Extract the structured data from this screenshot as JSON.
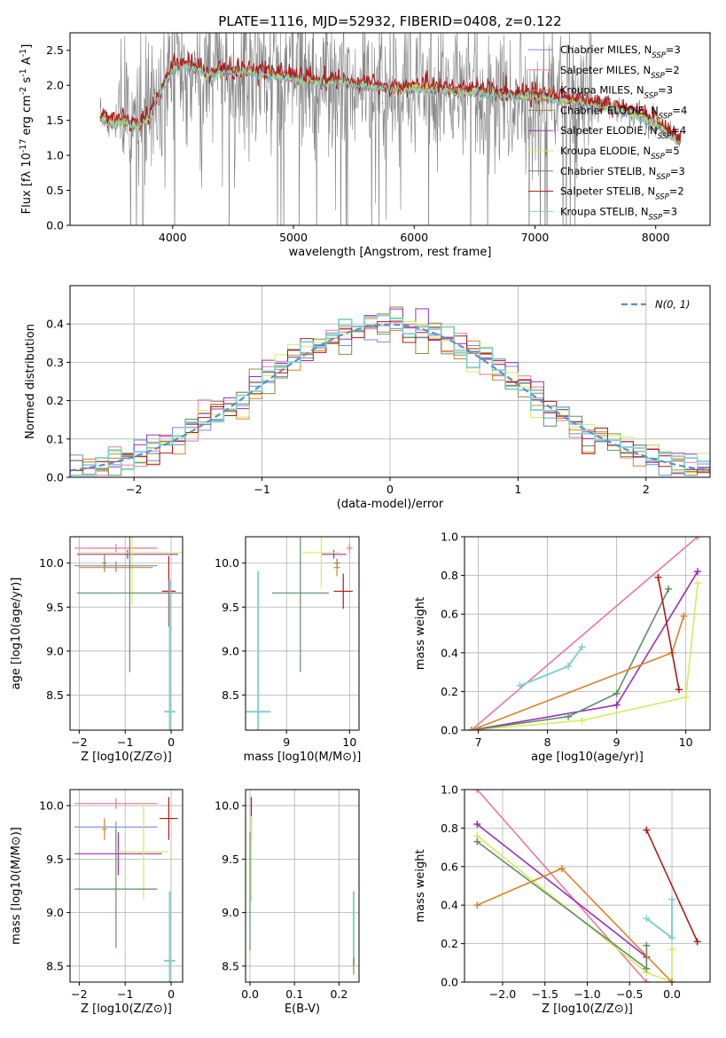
{
  "figure_title": "PLATE=1116, MJD=52932, FIBERID=0408, z=0.122",
  "colors": {
    "cm": "#6f8fd6",
    "sm": "#e9799a",
    "km": "#d9822b",
    "ce": "#8c8c3c",
    "se": "#9a2fb8",
    "ke": "#d9ea5c",
    "cs": "#5f8f66",
    "ss": "#aa1c1c",
    "ks": "#82cfcf",
    "raw": "#7f7f7f",
    "normal": "#5b8fd0"
  },
  "chart_data": [
    {
      "id": "spectrum",
      "type": "line",
      "xlabel": "wavelength [Angstrom, rest frame]",
      "ylabel": "Flux [f_λ 10^-17 erg cm^-2 s^-1 A^-1]",
      "xlim": [
        3150,
        8450
      ],
      "ylim": [
        0,
        2.75
      ],
      "xticks": [
        4000,
        5000,
        6000,
        7000,
        8000
      ],
      "yticks": [
        0.0,
        0.5,
        1.0,
        1.5,
        2.0,
        2.5
      ],
      "grid": false,
      "legend_position": "right",
      "legend": [
        {
          "key": "cm",
          "label": "Chabrier MILES, N_SSP=3"
        },
        {
          "key": "sm",
          "label": "Salpeter MILES, N_SSP=2"
        },
        {
          "key": "km",
          "label": "Kroupa MILES, N_SSP=3"
        },
        {
          "key": "ce",
          "label": "Chabrier ELODIE, N_SSP=4"
        },
        {
          "key": "se",
          "label": "Salpeter ELODIE, N_SSP=4"
        },
        {
          "key": "ke",
          "label": "Kroupa ELODIE, N_SSP=5"
        },
        {
          "key": "cs",
          "label": "Chabrier STELIB, N_SSP=3"
        },
        {
          "key": "ss",
          "label": "Salpeter STELIB, N_SSP=2"
        },
        {
          "key": "ks",
          "label": "Kroupa STELIB, N_SSP=3"
        }
      ],
      "continuum": {
        "x": [
          3400,
          3500,
          3600,
          3700,
          3800,
          3900,
          4000,
          4100,
          4200,
          4300,
          4400,
          4600,
          4800,
          5000,
          5200,
          5400,
          5600,
          5800,
          6000,
          6200,
          6400,
          6600,
          6800,
          7000,
          7200,
          7400,
          7600,
          7800,
          8000,
          8200
        ],
        "y": [
          1.55,
          1.45,
          1.5,
          1.4,
          1.55,
          1.9,
          2.25,
          2.3,
          2.25,
          2.15,
          2.2,
          2.2,
          2.15,
          2.1,
          2.05,
          2.05,
          2.0,
          1.95,
          1.95,
          1.95,
          1.9,
          1.9,
          1.85,
          1.85,
          1.8,
          1.75,
          1.7,
          1.6,
          1.45,
          1.2
        ]
      }
    },
    {
      "id": "residuals",
      "type": "histogram",
      "xlabel": "(data-model)/error",
      "ylabel": "Normed distribution",
      "xlim": [
        -2.5,
        2.5
      ],
      "ylim": [
        0,
        0.5
      ],
      "xticks": [
        -2,
        -1,
        0,
        1,
        2
      ],
      "yticks": [
        0.0,
        0.1,
        0.2,
        0.3,
        0.4
      ],
      "grid": true,
      "legend_position": "top-right",
      "legend": [
        {
          "key": "normal",
          "label": "N(0, 1)"
        }
      ],
      "bin_width": 0.1
    },
    {
      "id": "age_vs_Z",
      "type": "scatter",
      "xlabel": "Z [log10(Z/Z⊙)]",
      "ylabel": "age  [log10(age/yr)]",
      "xlim": [
        -2.2,
        0.25
      ],
      "ylim": [
        8.1,
        10.3
      ],
      "xticks": [
        -2,
        -1,
        0
      ],
      "yticks": [
        8.5,
        9.0,
        9.5,
        10.0
      ],
      "grid": true,
      "points": [
        {
          "key": "sm",
          "x": -1.2,
          "xerr": 0.9,
          "y": 10.17,
          "yerr": 0.05
        },
        {
          "key": "se",
          "x": -0.95,
          "xerr": 1.1,
          "y": 10.1,
          "yerr": 0.05
        },
        {
          "key": "ke",
          "x": -0.85,
          "xerr": 1.2,
          "y": 10.12,
          "yerr": 0.6
        },
        {
          "key": "cm",
          "x": -1.2,
          "xerr": 0.9,
          "y": 9.97,
          "yerr": 0.05
        },
        {
          "key": "km",
          "x": -1.2,
          "xerr": 0.8,
          "y": 9.95,
          "yerr": 0.05
        },
        {
          "key": "ce",
          "x": -1.45,
          "xerr": 0.05,
          "y": 10.0,
          "yerr": 0.1
        },
        {
          "key": "cs",
          "x": -0.9,
          "xerr": 1.15,
          "y": 9.66,
          "yerr": 0.9
        },
        {
          "key": "ss",
          "x": -0.05,
          "xerr": 0.15,
          "y": 9.68,
          "yerr": 0.4
        },
        {
          "key": "ks",
          "x": -0.03,
          "xerr": 0.12,
          "y": 8.31,
          "yerr": 1.5
        }
      ]
    },
    {
      "id": "age_vs_mass",
      "type": "scatter",
      "xlabel": "mass [log10(M/M⊙)]",
      "ylabel": "",
      "xlim": [
        8.35,
        10.15
      ],
      "ylim": [
        8.1,
        10.3
      ],
      "xticks": [
        9,
        10
      ],
      "yticks": [
        8.5,
        9.0,
        9.5,
        10.0
      ],
      "grid": true,
      "points": [
        {
          "key": "sm",
          "x": 10.0,
          "xerr": 0.05,
          "y": 10.17,
          "yerr": 0.05
        },
        {
          "key": "se",
          "x": 9.75,
          "xerr": 0.2,
          "y": 10.1,
          "yerr": 0.05
        },
        {
          "key": "ke",
          "x": 9.55,
          "xerr": 0.3,
          "y": 10.12,
          "yerr": 0.4
        },
        {
          "key": "km",
          "x": 9.8,
          "xerr": 0.05,
          "y": 9.95,
          "yerr": 0.1
        },
        {
          "key": "ce",
          "x": 9.8,
          "xerr": 0.05,
          "y": 10.0,
          "yerr": 0.05
        },
        {
          "key": "cs",
          "x": 9.22,
          "xerr": 0.45,
          "y": 9.66,
          "yerr": 0.9
        },
        {
          "key": "ss",
          "x": 9.9,
          "xerr": 0.15,
          "y": 9.68,
          "yerr": 0.2
        },
        {
          "key": "ks",
          "x": 8.55,
          "xerr": 0.2,
          "y": 8.31,
          "yerr": 1.6
        }
      ]
    },
    {
      "id": "weight_vs_age",
      "type": "line",
      "xlabel": "age  [log10(age/yr)]",
      "ylabel": "mass weight",
      "xlim": [
        6.8,
        10.35
      ],
      "ylim": [
        0,
        1
      ],
      "xticks": [
        7,
        8,
        9,
        10
      ],
      "yticks": [
        0.0,
        0.2,
        0.4,
        0.6,
        0.8,
        1.0
      ],
      "grid": true,
      "series": [
        {
          "key": "sm",
          "x": [
            6.9,
            10.17
          ],
          "y": [
            0.0,
            1.0
          ]
        },
        {
          "key": "se",
          "x": [
            6.9,
            9.0,
            10.17
          ],
          "y": [
            0.0,
            0.13,
            0.82
          ]
        },
        {
          "key": "ke",
          "x": [
            6.9,
            8.5,
            10.0,
            10.17
          ],
          "y": [
            0.0,
            0.05,
            0.17,
            0.76
          ]
        },
        {
          "key": "cs",
          "x": [
            6.9,
            8.3,
            9.0,
            9.75
          ],
          "y": [
            0.0,
            0.07,
            0.19,
            0.73
          ]
        },
        {
          "key": "km",
          "x": [
            6.9,
            9.8,
            9.97
          ],
          "y": [
            0.0,
            0.4,
            0.59
          ]
        },
        {
          "key": "ss",
          "x": [
            9.6,
            9.9
          ],
          "y": [
            0.79,
            0.21
          ]
        },
        {
          "key": "ks",
          "x": [
            7.6,
            8.3,
            8.5
          ],
          "y": [
            0.23,
            0.33,
            0.43
          ]
        }
      ]
    },
    {
      "id": "mass_vs_Z",
      "type": "scatter",
      "xlabel": "Z [log10(Z/Z⊙)]",
      "ylabel": "mass [log10(M/M⊙)]",
      "xlim": [
        -2.2,
        0.25
      ],
      "ylim": [
        8.35,
        10.15
      ],
      "xticks": [
        -2,
        -1,
        0
      ],
      "yticks": [
        8.5,
        9.0,
        9.5,
        10.0
      ],
      "grid": true,
      "points": [
        {
          "key": "sm",
          "x": -1.2,
          "xerr": 0.9,
          "y": 10.02,
          "yerr": 0.05
        },
        {
          "key": "cm",
          "x": -1.2,
          "xerr": 0.9,
          "y": 9.8,
          "yerr": 0.05
        },
        {
          "key": "km",
          "x": -1.45,
          "xerr": 0.05,
          "y": 9.78,
          "yerr": 0.1
        },
        {
          "key": "se",
          "x": -1.15,
          "xerr": 0.95,
          "y": 9.55,
          "yerr": 0.2
        },
        {
          "key": "ke",
          "x": -0.6,
          "xerr": 0.55,
          "y": 9.57,
          "yerr": 0.45
        },
        {
          "key": "cs",
          "x": -1.2,
          "xerr": 0.9,
          "y": 9.22,
          "yerr": 0.55
        },
        {
          "key": "ss",
          "x": -0.05,
          "xerr": 0.2,
          "y": 9.88,
          "yerr": 0.2
        },
        {
          "key": "ks",
          "x": -0.03,
          "xerr": 0.12,
          "y": 8.55,
          "yerr": 0.65
        }
      ]
    },
    {
      "id": "mass_vs_ebv",
      "type": "scatter",
      "xlabel": "E(B-V)",
      "ylabel": "",
      "xlim": [
        -0.01,
        0.245
      ],
      "ylim": [
        8.35,
        10.15
      ],
      "xticks": [
        0.0,
        0.1,
        0.2
      ],
      "yticks": [
        8.5,
        9.0,
        9.5,
        10.0
      ],
      "grid": true,
      "points": [
        {
          "key": "ss",
          "x": 0.003,
          "xerr": 0.0,
          "y": 9.88,
          "yerr": 0.2
        },
        {
          "key": "ke",
          "x": 0.003,
          "xerr": 0.0,
          "y": 9.5,
          "yerr": 0.4
        },
        {
          "key": "cs",
          "x": 0.0,
          "xerr": 0.0,
          "y": 9.2,
          "yerr": 0.55
        },
        {
          "key": "ks",
          "x": 0.233,
          "xerr": 0.0,
          "y": 8.85,
          "yerr": 0.35
        },
        {
          "key": "ce",
          "x": 0.233,
          "xerr": 0.0,
          "y": 8.5,
          "yerr": 0.08
        }
      ]
    },
    {
      "id": "weight_vs_Z",
      "type": "line",
      "xlabel": "Z [log10(Z/Z⊙)]",
      "ylabel": "mass weight",
      "xlim": [
        -2.45,
        0.45
      ],
      "ylim": [
        0,
        1
      ],
      "xticks": [
        -2.0,
        -1.5,
        -1.0,
        -0.5,
        0.0
      ],
      "yticks": [
        0.0,
        0.2,
        0.4,
        0.6,
        0.8,
        1.0
      ],
      "grid": true,
      "series": [
        {
          "key": "sm",
          "x": [
            -2.3,
            -0.3
          ],
          "y": [
            1.0,
            0.0
          ]
        },
        {
          "key": "se",
          "x": [
            -2.3,
            -0.3
          ],
          "y": [
            0.82,
            0.13
          ]
        },
        {
          "key": "ke",
          "x": [
            -2.3,
            -0.3,
            0.0,
            0.0
          ],
          "y": [
            0.76,
            0.05,
            0.0,
            0.17
          ]
        },
        {
          "key": "cs",
          "x": [
            -2.3,
            -0.3,
            -0.3
          ],
          "y": [
            0.73,
            0.07,
            0.19
          ]
        },
        {
          "key": "km",
          "x": [
            -2.3,
            -1.3,
            0.0
          ],
          "y": [
            0.4,
            0.59,
            0.0
          ]
        },
        {
          "key": "ss",
          "x": [
            -0.3,
            0.3
          ],
          "y": [
            0.79,
            0.21
          ]
        },
        {
          "key": "ks",
          "x": [
            -0.3,
            0.0,
            0.0
          ],
          "y": [
            0.33,
            0.23,
            0.43
          ]
        }
      ]
    }
  ]
}
